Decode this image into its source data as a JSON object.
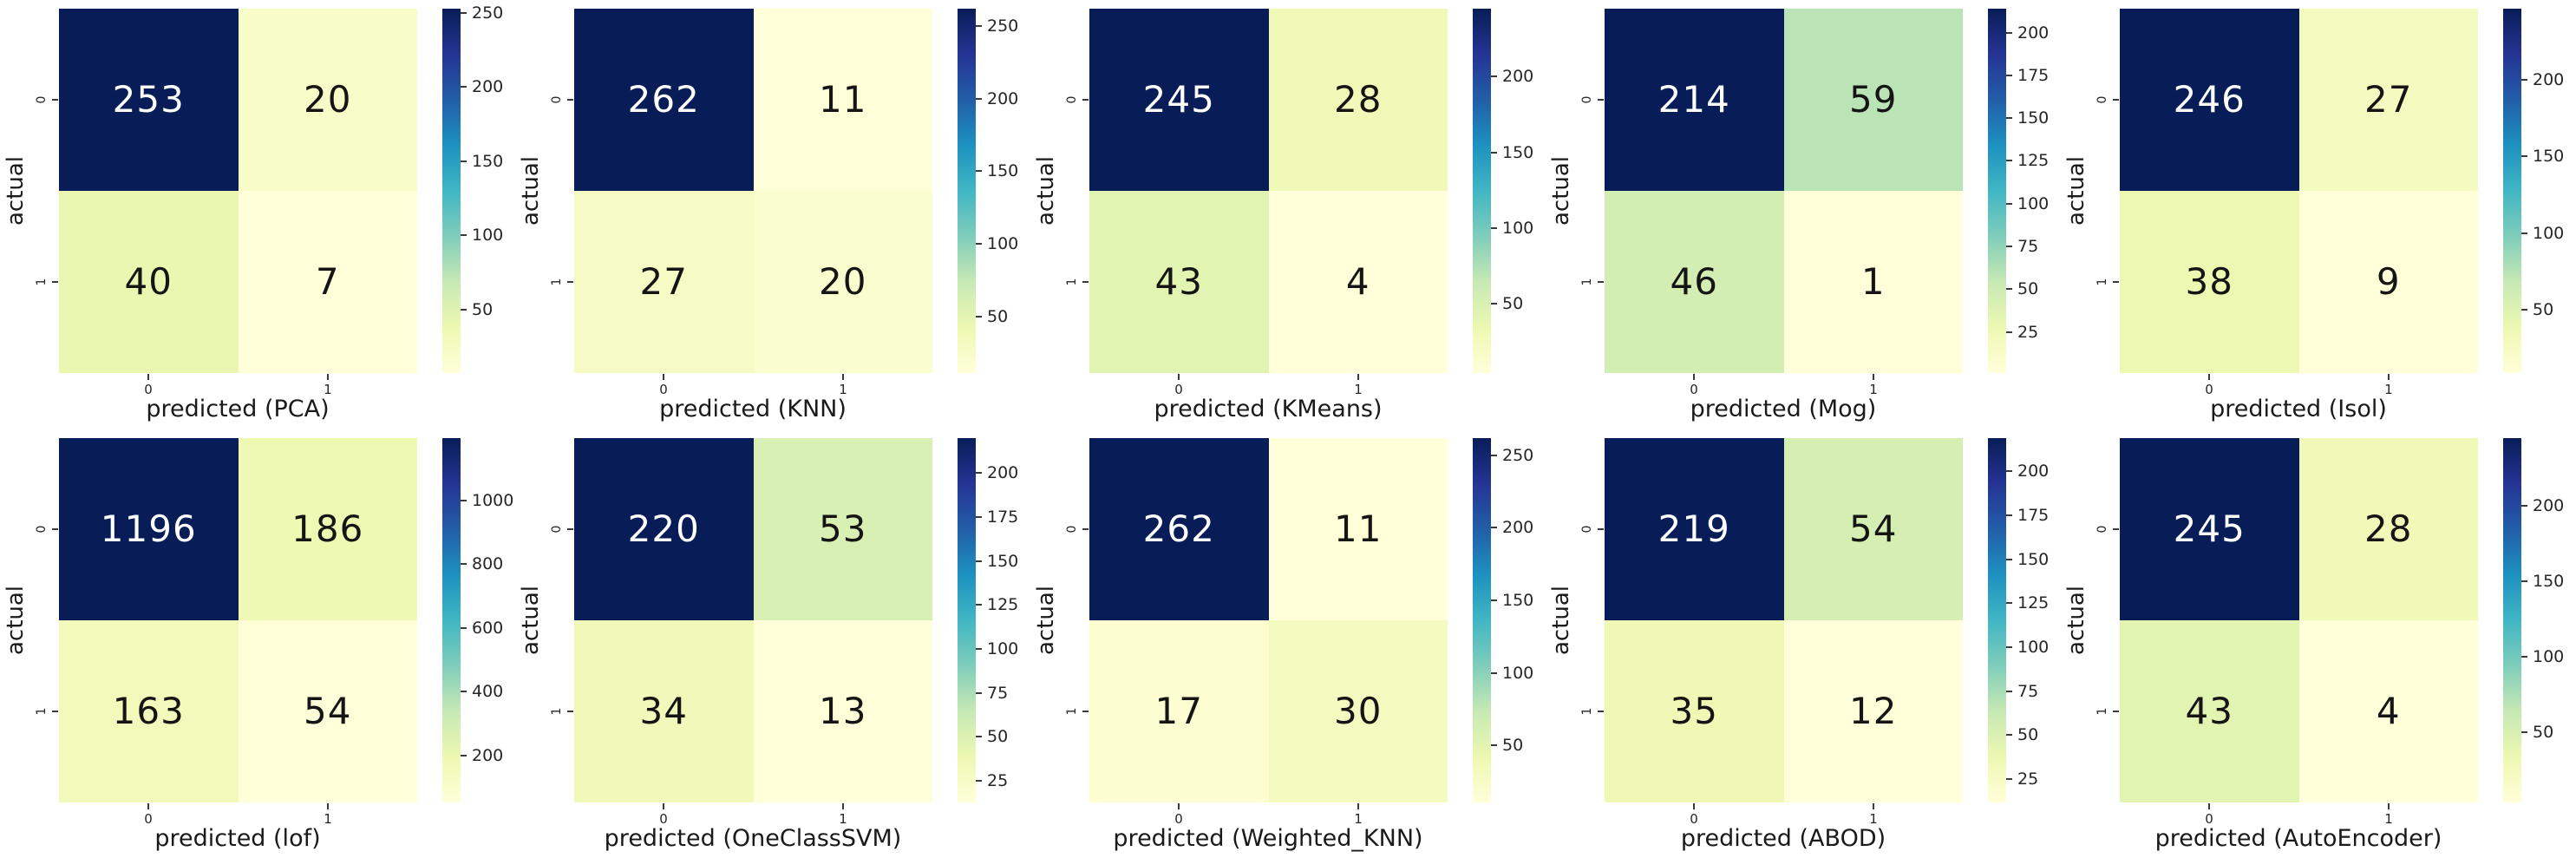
{
  "figure": {
    "background_color": "#ffffff",
    "grid": {
      "rows": 2,
      "cols": 5
    },
    "colormap": {
      "name": "YlGnBu",
      "stops": [
        {
          "t": 0.0,
          "color": "#ffffd9"
        },
        {
          "t": 0.125,
          "color": "#edf8b1"
        },
        {
          "t": 0.25,
          "color": "#c7e9b4"
        },
        {
          "t": 0.375,
          "color": "#7fcdbb"
        },
        {
          "t": 0.5,
          "color": "#41b6c4"
        },
        {
          "t": 0.625,
          "color": "#1d91c0"
        },
        {
          "t": 0.75,
          "color": "#225ea8"
        },
        {
          "t": 0.875,
          "color": "#253494"
        },
        {
          "t": 1.0,
          "color": "#081d58"
        }
      ]
    },
    "text_colors": {
      "annotation_light": "#ffffff",
      "annotation_dark": "#151515",
      "tick": "#262626",
      "axis_label": "#1a1a1a"
    }
  },
  "chart_data": [
    {
      "type": "heatmap",
      "model": "PCA",
      "xlabel": "predicted (PCA)",
      "ylabel": "actual",
      "xticklabels": [
        "0",
        "1"
      ],
      "yticklabels": [
        "0",
        "1"
      ],
      "matrix": [
        [
          253,
          20
        ],
        [
          40,
          7
        ]
      ],
      "vmin": 7,
      "vmax": 253,
      "colorbar_ticks": [
        50,
        100,
        150,
        200,
        250
      ]
    },
    {
      "type": "heatmap",
      "model": "KNN",
      "xlabel": "predicted (KNN)",
      "ylabel": "actual",
      "xticklabels": [
        "0",
        "1"
      ],
      "yticklabels": [
        "0",
        "1"
      ],
      "matrix": [
        [
          262,
          11
        ],
        [
          27,
          20
        ]
      ],
      "vmin": 11,
      "vmax": 262,
      "colorbar_ticks": [
        50,
        100,
        150,
        200,
        250
      ]
    },
    {
      "type": "heatmap",
      "model": "KMeans",
      "xlabel": "predicted (KMeans)",
      "ylabel": "actual",
      "xticklabels": [
        "0",
        "1"
      ],
      "yticklabels": [
        "0",
        "1"
      ],
      "matrix": [
        [
          245,
          28
        ],
        [
          43,
          4
        ]
      ],
      "vmin": 4,
      "vmax": 245,
      "colorbar_ticks": [
        50,
        100,
        150,
        200
      ]
    },
    {
      "type": "heatmap",
      "model": "Mog",
      "xlabel": "predicted (Mog)",
      "ylabel": "actual",
      "xticklabels": [
        "0",
        "1"
      ],
      "yticklabels": [
        "0",
        "1"
      ],
      "matrix": [
        [
          214,
          59
        ],
        [
          46,
          1
        ]
      ],
      "vmin": 1,
      "vmax": 214,
      "colorbar_ticks": [
        25,
        50,
        75,
        100,
        125,
        150,
        175,
        200
      ]
    },
    {
      "type": "heatmap",
      "model": "Isol",
      "xlabel": "predicted (Isol)",
      "ylabel": "actual",
      "xticklabels": [
        "0",
        "1"
      ],
      "yticklabels": [
        "0",
        "1"
      ],
      "matrix": [
        [
          246,
          27
        ],
        [
          38,
          9
        ]
      ],
      "vmin": 9,
      "vmax": 246,
      "colorbar_ticks": [
        50,
        100,
        150,
        200
      ]
    },
    {
      "type": "heatmap",
      "model": "lof",
      "xlabel": "predicted (lof)",
      "ylabel": "actual",
      "xticklabels": [
        "0",
        "1"
      ],
      "yticklabels": [
        "0",
        "1"
      ],
      "matrix": [
        [
          1196,
          186
        ],
        [
          163,
          54
        ]
      ],
      "vmin": 54,
      "vmax": 1196,
      "colorbar_ticks": [
        200,
        400,
        600,
        800,
        1000
      ]
    },
    {
      "type": "heatmap",
      "model": "OneClassSVM",
      "xlabel": "predicted (OneClassSVM)",
      "ylabel": "actual",
      "xticklabels": [
        "0",
        "1"
      ],
      "yticklabels": [
        "0",
        "1"
      ],
      "matrix": [
        [
          220,
          53
        ],
        [
          34,
          13
        ]
      ],
      "vmin": 13,
      "vmax": 220,
      "colorbar_ticks": [
        25,
        50,
        75,
        100,
        125,
        150,
        175,
        200
      ]
    },
    {
      "type": "heatmap",
      "model": "Weighted_KNN",
      "xlabel": "predicted (Weighted_KNN)",
      "ylabel": "actual",
      "xticklabels": [
        "0",
        "1"
      ],
      "yticklabels": [
        "0",
        "1"
      ],
      "matrix": [
        [
          262,
          11
        ],
        [
          17,
          30
        ]
      ],
      "vmin": 11,
      "vmax": 262,
      "colorbar_ticks": [
        50,
        100,
        150,
        200,
        250
      ]
    },
    {
      "type": "heatmap",
      "model": "ABOD",
      "xlabel": "predicted (ABOD)",
      "ylabel": "actual",
      "xticklabels": [
        "0",
        "1"
      ],
      "yticklabels": [
        "0",
        "1"
      ],
      "matrix": [
        [
          219,
          54
        ],
        [
          35,
          12
        ]
      ],
      "vmin": 12,
      "vmax": 219,
      "colorbar_ticks": [
        25,
        50,
        75,
        100,
        125,
        150,
        175,
        200
      ]
    },
    {
      "type": "heatmap",
      "model": "AutoEncoder",
      "xlabel": "predicted (AutoEncoder)",
      "ylabel": "actual",
      "xticklabels": [
        "0",
        "1"
      ],
      "yticklabels": [
        "0",
        "1"
      ],
      "matrix": [
        [
          245,
          28
        ],
        [
          43,
          4
        ]
      ],
      "vmin": 4,
      "vmax": 245,
      "colorbar_ticks": [
        50,
        100,
        150,
        200
      ]
    }
  ]
}
